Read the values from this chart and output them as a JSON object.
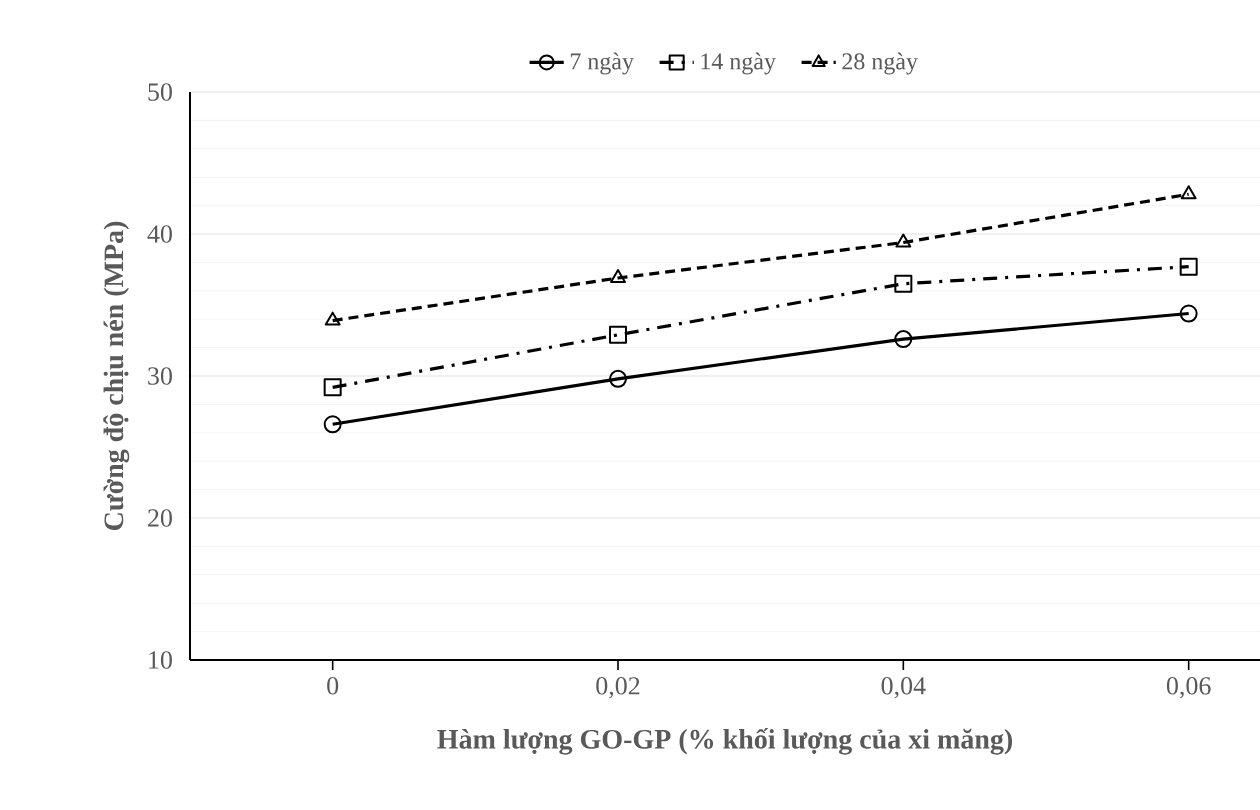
{
  "chart_data": {
    "type": "line",
    "xlabel": "Hàm lượng GO-GP (% khối lượng của xi măng)",
    "ylabel": "Cường độ chịu nén (MPa)",
    "categories": [
      "0",
      "0,02",
      "0,04",
      "0,06"
    ],
    "series": [
      {
        "name": "7 ngày",
        "color": "#000000",
        "marker": "circle",
        "line_style": "solid",
        "values": [
          26.6,
          29.8,
          32.6,
          34.4
        ]
      },
      {
        "name": "14 ngày",
        "color": "#000000",
        "marker": "square",
        "line_style": "dashdot",
        "values": [
          29.2,
          32.9,
          36.5,
          37.7
        ]
      },
      {
        "name": "28 ngày",
        "color": "#000000",
        "marker": "triangle",
        "line_style": "dashed",
        "values": [
          33.9,
          36.9,
          39.4,
          42.8
        ]
      }
    ],
    "ylim": [
      10,
      50
    ],
    "yticks": [
      10,
      20,
      30,
      40,
      50
    ],
    "grid": "y",
    "legend": "top"
  }
}
